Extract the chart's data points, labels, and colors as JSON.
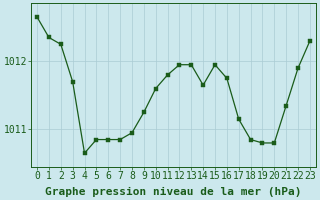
{
  "x": [
    0,
    1,
    2,
    3,
    4,
    5,
    6,
    7,
    8,
    9,
    10,
    11,
    12,
    13,
    14,
    15,
    16,
    17,
    18,
    19,
    20,
    21,
    22,
    23
  ],
  "y": [
    1012.65,
    1012.35,
    1012.25,
    1011.7,
    1010.65,
    1010.85,
    1010.85,
    1010.85,
    1010.95,
    1011.25,
    1011.6,
    1011.8,
    1011.95,
    1011.95,
    1011.65,
    1011.95,
    1011.75,
    1011.15,
    1010.85,
    1010.8,
    1010.8,
    1011.35,
    1011.9,
    1012.3
  ],
  "line_color": "#1a5c1a",
  "marker_color": "#1a5c1a",
  "bg_color": "#cce8ed",
  "grid_color": "#aaccd4",
  "axis_color": "#1a5c1a",
  "ytick_labels": [
    "1012",
    "1011"
  ],
  "ytick_values": [
    1012.0,
    1011.0
  ],
  "xlabel": "Graphe pression niveau de la mer (hPa)",
  "xlim": [
    -0.5,
    23.5
  ],
  "ylim": [
    1010.45,
    1012.85
  ],
  "tick_fontsize": 7.0,
  "label_fontsize": 8.0,
  "figsize": [
    3.2,
    2.0
  ],
  "dpi": 100
}
